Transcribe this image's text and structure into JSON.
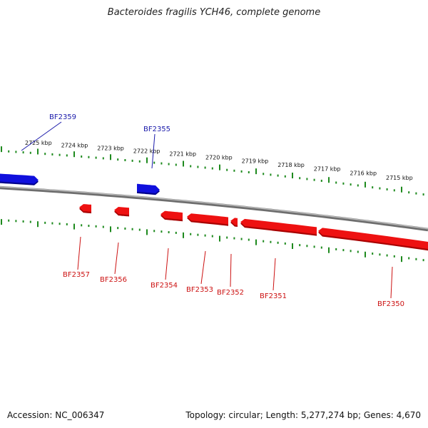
{
  "title": "Bacteroides fragilis YCH46, complete genome",
  "footer": {
    "accession": "Accession: NC_006347",
    "summary": "Topology: circular; Length: 5,277,274 bp; Genes: 4,670"
  },
  "colors": {
    "forward_gene": "#1010dd",
    "reverse_gene": "#ee1111",
    "forward_label": "#1a1aaa",
    "reverse_label": "#cc1111",
    "backbone": "#888888",
    "tick": "#1e8a1e"
  },
  "scale_labels": [
    "2725 kbp",
    "2724 kbp",
    "2723 kbp",
    "2722 kbp",
    "2721 kbp",
    "2720 kbp",
    "2719 kbp",
    "2718 kbp",
    "2717 kbp",
    "2716 kbp",
    "2715 kbp"
  ],
  "forward_genes": [
    {
      "name": "BF2359",
      "label": "BF2359"
    },
    {
      "name": "BF2355",
      "label": "BF2355"
    }
  ],
  "reverse_genes": [
    {
      "name": "BF2357",
      "label": "BF2357"
    },
    {
      "name": "BF2356",
      "label": "BF2356"
    },
    {
      "name": "BF2354",
      "label": "BF2354"
    },
    {
      "name": "BF2353",
      "label": "BF2353"
    },
    {
      "name": "BF2352",
      "label": "BF2352"
    },
    {
      "name": "BF2351",
      "label": "BF2351"
    },
    {
      "name": "BF2350",
      "label": "BF2350"
    }
  ]
}
